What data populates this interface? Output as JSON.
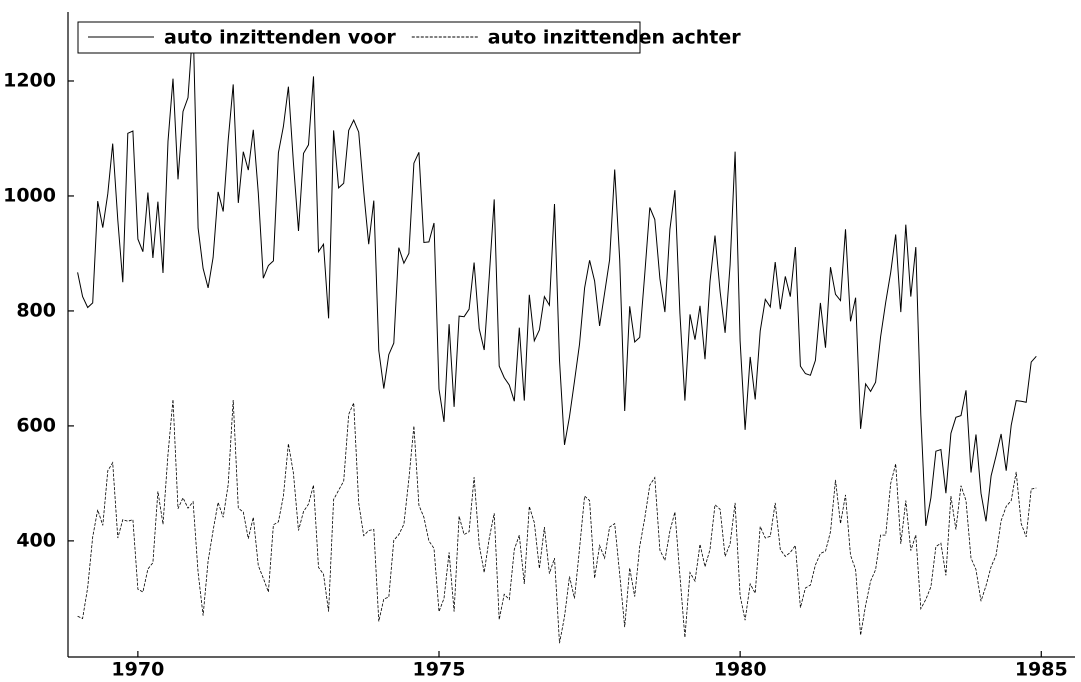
{
  "chart_data": {
    "type": "line",
    "x": [
      1969,
      1969.083,
      1969.167,
      1969.25,
      1969.333,
      1969.417,
      1969.5,
      1969.583,
      1969.667,
      1969.75,
      1969.833,
      1969.917,
      1970,
      1970.083,
      1970.167,
      1970.25,
      1970.333,
      1970.417,
      1970.5,
      1970.583,
      1970.667,
      1970.75,
      1970.833,
      1970.917,
      1971,
      1971.083,
      1971.167,
      1971.25,
      1971.333,
      1971.417,
      1971.5,
      1971.583,
      1971.667,
      1971.75,
      1971.833,
      1971.917,
      1972,
      1972.083,
      1972.167,
      1972.25,
      1972.333,
      1972.417,
      1972.5,
      1972.583,
      1972.667,
      1972.75,
      1972.833,
      1972.917,
      1973,
      1973.083,
      1973.167,
      1973.25,
      1973.333,
      1973.417,
      1973.5,
      1973.583,
      1973.667,
      1973.75,
      1973.833,
      1973.917,
      1974,
      1974.083,
      1974.167,
      1974.25,
      1974.333,
      1974.417,
      1974.5,
      1974.583,
      1974.667,
      1974.75,
      1974.833,
      1974.917,
      1975,
      1975.083,
      1975.167,
      1975.25,
      1975.333,
      1975.417,
      1975.5,
      1975.583,
      1975.667,
      1975.75,
      1975.833,
      1975.917,
      1976,
      1976.083,
      1976.167,
      1976.25,
      1976.333,
      1976.417,
      1976.5,
      1976.583,
      1976.667,
      1976.75,
      1976.833,
      1976.917,
      1977,
      1977.083,
      1977.167,
      1977.25,
      1977.333,
      1977.417,
      1977.5,
      1977.583,
      1977.667,
      1977.75,
      1977.833,
      1977.917,
      1978,
      1978.083,
      1978.167,
      1978.25,
      1978.333,
      1978.417,
      1978.5,
      1978.583,
      1978.667,
      1978.75,
      1978.833,
      1978.917,
      1979,
      1979.083,
      1979.167,
      1979.25,
      1979.333,
      1979.417,
      1979.5,
      1979.583,
      1979.667,
      1979.75,
      1979.833,
      1979.917,
      1980,
      1980.083,
      1980.167,
      1980.25,
      1980.333,
      1980.417,
      1980.5,
      1980.583,
      1980.667,
      1980.75,
      1980.833,
      1980.917,
      1981,
      1981.083,
      1981.167,
      1981.25,
      1981.333,
      1981.417,
      1981.5,
      1981.583,
      1981.667,
      1981.75,
      1981.833,
      1981.917,
      1982,
      1982.083,
      1982.167,
      1982.25,
      1982.333,
      1982.417,
      1982.5,
      1982.583,
      1982.667,
      1982.75,
      1982.833,
      1982.917,
      1983,
      1983.083,
      1983.167,
      1983.25,
      1983.333,
      1983.417,
      1983.5,
      1983.583,
      1983.667,
      1983.75,
      1983.833,
      1983.917,
      1984,
      1984.083,
      1984.167,
      1984.25,
      1984.333,
      1984.417,
      1984.5,
      1984.583,
      1984.667,
      1984.75,
      1984.833,
      1984.917
    ],
    "series": [
      {
        "name": "auto inzittenden voor",
        "color": "#000000",
        "linestyle": "solid",
        "values": [
          867,
          825,
          806,
          814,
          991,
          945,
          1004,
          1091,
          958,
          850,
          1109,
          1113,
          925,
          903,
          1006,
          892,
          990,
          866,
          1095,
          1204,
          1029,
          1147,
          1171,
          1299,
          944,
          874,
          840,
          893,
          1007,
          973,
          1097,
          1194,
          988,
          1077,
          1045,
          1115,
          1005,
          857,
          879,
          887,
          1075,
          1121,
          1190,
          1058,
          939,
          1074,
          1089,
          1208,
          903,
          916,
          787,
          1114,
          1014,
          1022,
          1114,
          1132,
          1111,
          1008,
          916,
          992,
          731,
          665,
          724,
          744,
          910,
          883,
          900,
          1057,
          1076,
          919,
          920,
          953,
          664,
          607,
          777,
          633,
          791,
          790,
          803,
          884,
          769,
          732,
          859,
          994,
          704,
          684,
          671,
          643,
          771,
          644,
          828,
          748,
          767,
          825,
          810,
          986,
          714,
          567,
          616,
          678,
          742,
          840,
          888,
          852,
          774,
          831,
          889,
          1046,
          889,
          626,
          808,
          746,
          754,
          865,
          980,
          959,
          856,
          798,
          942,
          1010,
          796,
          644,
          794,
          750,
          809,
          716,
          851,
          931,
          834,
          762,
          880,
          1077,
          748,
          593,
          720,
          646,
          765,
          820,
          807,
          885,
          803,
          860,
          825,
          911,
          704,
          691,
          688,
          714,
          814,
          736,
          876,
          829,
          818,
          942,
          782,
          823,
          595,
          673,
          660,
          676,
          755,
          815,
          867,
          933,
          798,
          950,
          825,
          911,
          619,
          426,
          475,
          556,
          559,
          483,
          587,
          615,
          618,
          662,
          519,
          585,
          483,
          434,
          513,
          548,
          586,
          522,
          601,
          644,
          643,
          641,
          711,
          721
        ]
      },
      {
        "name": "auto inzittenden achter",
        "color": "#000000",
        "linestyle": "dashed",
        "values": [
          269,
          265,
          319,
          407,
          454,
          427,
          522,
          536,
          405,
          437,
          434,
          437,
          316,
          311,
          351,
          362,
          486,
          429,
          551,
          646,
          456,
          475,
          457,
          468,
          345,
          270,
          365,
          418,
          467,
          441,
          498,
          645,
          457,
          450,
          404,
          441,
          357,
          335,
          311,
          428,
          433,
          478,
          569,
          518,
          418,
          451,
          464,
          497,
          354,
          342,
          277,
          472,
          488,
          504,
          620,
          640,
          466,
          409,
          418,
          420,
          260,
          299,
          302,
          401,
          411,
          429,
          508,
          600,
          462,
          441,
          400,
          387,
          277,
          300,
          380,
          277,
          443,
          411,
          416,
          511,
          393,
          345,
          404,
          448,
          263,
          307,
          298,
          385,
          410,
          325,
          460,
          432,
          352,
          424,
          343,
          370,
          222,
          268,
          338,
          300,
          386,
          478,
          470,
          335,
          392,
          370,
          424,
          430,
          342,
          250,
          353,
          303,
          390,
          440,
          497,
          510,
          384,
          366,
          417,
          450,
          340,
          232,
          345,
          330,
          394,
          355,
          385,
          463,
          455,
          373,
          395,
          466,
          305,
          262,
          325,
          309,
          425,
          405,
          408,
          466,
          385,
          373,
          380,
          392,
          284,
          318,
          323,
          358,
          378,
          382,
          416,
          506,
          430,
          480,
          375,
          350,
          236,
          288,
          330,
          350,
          410,
          410,
          500,
          534,
          395,
          470,
          383,
          410,
          282,
          298,
          320,
          390,
          396,
          340,
          478,
          420,
          496,
          470,
          370,
          350,
          295,
          322,
          355,
          375,
          435,
          460,
          470,
          520,
          430,
          407,
          490,
          492
        ]
      }
    ],
    "xlim": [
      1968.84,
      1985.56
    ],
    "xticks": [
      1970,
      1975,
      1980,
      1985
    ],
    "ylim": [
      198,
      1320
    ],
    "yticks": [
      400,
      600,
      800,
      1000,
      1200
    ],
    "legend": "upper left"
  }
}
